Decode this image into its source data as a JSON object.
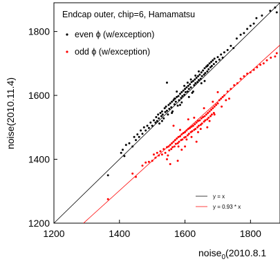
{
  "chart_data": {
    "type": "scatter",
    "title": "Endcap outer, chip=6, Hamamatsu",
    "xlabel": {
      "base": "noise",
      "subscript": "0",
      "rest": "(2010.8.1"
    },
    "ylabel": "noise(2010.11.4)",
    "xlim": [
      1200,
      1890
    ],
    "ylim": [
      1200,
      1890
    ],
    "xticks": [
      1200,
      1400,
      1600,
      1800
    ],
    "yticks": [
      1200,
      1400,
      1600,
      1800
    ],
    "grid": false,
    "legend_top": {
      "placement": "top-left",
      "entries": [
        {
          "label": "even ϕ (w/exception)",
          "color": "#000000"
        },
        {
          "label": "odd ϕ (w/exception)",
          "color": "#ff0000"
        }
      ]
    },
    "legend_bottom": {
      "placement": "bottom-right",
      "entries": [
        {
          "label": "y = x",
          "color": "#000000"
        },
        {
          "label": "y = 0.93 * x",
          "color": "#ff0000"
        }
      ]
    },
    "reference_lines": [
      {
        "label": "y = x",
        "slope": 1.0,
        "color": "#000000"
      },
      {
        "label": "y = 0.93 * x",
        "slope": 0.93,
        "color": "#ff0000"
      }
    ],
    "series": [
      {
        "name": "even ϕ (w/exception)",
        "color": "#000000",
        "points": [
          [
            1365,
            1350
          ],
          [
            1405,
            1420
          ],
          [
            1410,
            1430
          ],
          [
            1415,
            1410
          ],
          [
            1420,
            1445
          ],
          [
            1430,
            1450
          ],
          [
            1440,
            1440
          ],
          [
            1445,
            1470
          ],
          [
            1450,
            1460
          ],
          [
            1455,
            1478
          ],
          [
            1460,
            1470
          ],
          [
            1465,
            1490
          ],
          [
            1470,
            1480
          ],
          [
            1475,
            1500
          ],
          [
            1480,
            1490
          ],
          [
            1485,
            1505
          ],
          [
            1490,
            1498
          ],
          [
            1495,
            1515
          ],
          [
            1500,
            1505
          ],
          [
            1505,
            1522
          ],
          [
            1510,
            1515
          ],
          [
            1512,
            1532
          ],
          [
            1515,
            1520
          ],
          [
            1518,
            1540
          ],
          [
            1520,
            1528
          ],
          [
            1522,
            1512
          ],
          [
            1525,
            1545
          ],
          [
            1528,
            1535
          ],
          [
            1530,
            1550
          ],
          [
            1532,
            1540
          ],
          [
            1535,
            1528
          ],
          [
            1538,
            1560
          ],
          [
            1540,
            1548
          ],
          [
            1542,
            1565
          ],
          [
            1545,
            1552
          ],
          [
            1548,
            1540
          ],
          [
            1550,
            1570
          ],
          [
            1552,
            1558
          ],
          [
            1555,
            1575
          ],
          [
            1558,
            1563
          ],
          [
            1560,
            1580
          ],
          [
            1562,
            1550
          ],
          [
            1565,
            1585
          ],
          [
            1568,
            1572
          ],
          [
            1570,
            1590
          ],
          [
            1572,
            1580
          ],
          [
            1575,
            1595
          ],
          [
            1578,
            1568
          ],
          [
            1580,
            1598
          ],
          [
            1582,
            1585
          ],
          [
            1585,
            1605
          ],
          [
            1588,
            1592
          ],
          [
            1590,
            1610
          ],
          [
            1592,
            1598
          ],
          [
            1595,
            1615
          ],
          [
            1598,
            1602
          ],
          [
            1600,
            1620
          ],
          [
            1602,
            1610
          ],
          [
            1605,
            1625
          ],
          [
            1608,
            1612
          ],
          [
            1610,
            1630
          ],
          [
            1612,
            1620
          ],
          [
            1615,
            1635
          ],
          [
            1618,
            1625
          ],
          [
            1620,
            1642
          ],
          [
            1622,
            1608
          ],
          [
            1625,
            1645
          ],
          [
            1628,
            1632
          ],
          [
            1630,
            1650
          ],
          [
            1632,
            1638
          ],
          [
            1635,
            1655
          ],
          [
            1638,
            1642
          ],
          [
            1640,
            1660
          ],
          [
            1642,
            1648
          ],
          [
            1645,
            1665
          ],
          [
            1648,
            1652
          ],
          [
            1650,
            1672
          ],
          [
            1652,
            1660
          ],
          [
            1655,
            1678
          ],
          [
            1658,
            1665
          ],
          [
            1660,
            1685
          ],
          [
            1662,
            1670
          ],
          [
            1665,
            1690
          ],
          [
            1668,
            1675
          ],
          [
            1670,
            1695
          ],
          [
            1672,
            1682
          ],
          [
            1675,
            1700
          ],
          [
            1678,
            1688
          ],
          [
            1680,
            1705
          ],
          [
            1682,
            1692
          ],
          [
            1685,
            1710
          ],
          [
            1688,
            1698
          ],
          [
            1690,
            1715
          ],
          [
            1695,
            1705
          ],
          [
            1700,
            1720
          ],
          [
            1705,
            1712
          ],
          [
            1710,
            1728
          ],
          [
            1715,
            1718
          ],
          [
            1720,
            1735
          ],
          [
            1730,
            1742
          ],
          [
            1740,
            1755
          ],
          [
            1748,
            1748
          ],
          [
            1758,
            1778
          ],
          [
            1770,
            1790
          ],
          [
            1780,
            1795
          ],
          [
            1790,
            1808
          ],
          [
            1800,
            1818
          ],
          [
            1810,
            1825
          ],
          [
            1818,
            1842
          ],
          [
            1835,
            1850
          ],
          [
            1860,
            1865
          ],
          [
            1875,
            1875
          ],
          [
            1880,
            1860
          ],
          [
            1545,
            1640
          ],
          [
            1560,
            1545
          ],
          [
            1612,
            1595
          ],
          [
            1598,
            1630
          ],
          [
            1575,
            1612
          ],
          [
            1625,
            1612
          ],
          [
            1660,
            1645
          ],
          [
            1642,
            1675
          ],
          [
            1585,
            1570
          ],
          [
            1530,
            1520
          ],
          [
            1568,
            1590
          ],
          [
            1632,
            1662
          ],
          [
            1650,
            1638
          ],
          [
            1668,
            1692
          ],
          [
            1608,
            1640
          ],
          [
            1590,
            1578
          ],
          [
            1618,
            1650
          ]
        ]
      },
      {
        "name": "odd ϕ (w/exception)",
        "color": "#ff0000",
        "points": [
          [
            1365,
            1275
          ],
          [
            1440,
            1355
          ],
          [
            1450,
            1345
          ],
          [
            1470,
            1380
          ],
          [
            1480,
            1390
          ],
          [
            1490,
            1392
          ],
          [
            1500,
            1395
          ],
          [
            1505,
            1415
          ],
          [
            1510,
            1405
          ],
          [
            1515,
            1420
          ],
          [
            1520,
            1412
          ],
          [
            1525,
            1425
          ],
          [
            1530,
            1415
          ],
          [
            1535,
            1432
          ],
          [
            1540,
            1420
          ],
          [
            1545,
            1438
          ],
          [
            1548,
            1412
          ],
          [
            1550,
            1440
          ],
          [
            1552,
            1428
          ],
          [
            1555,
            1445
          ],
          [
            1558,
            1432
          ],
          [
            1560,
            1450
          ],
          [
            1562,
            1438
          ],
          [
            1565,
            1455
          ],
          [
            1568,
            1440
          ],
          [
            1570,
            1460
          ],
          [
            1572,
            1448
          ],
          [
            1575,
            1465
          ],
          [
            1578,
            1450
          ],
          [
            1580,
            1470
          ],
          [
            1582,
            1455
          ],
          [
            1585,
            1472
          ],
          [
            1588,
            1460
          ],
          [
            1590,
            1478
          ],
          [
            1592,
            1462
          ],
          [
            1595,
            1482
          ],
          [
            1598,
            1468
          ],
          [
            1600,
            1485
          ],
          [
            1602,
            1470
          ],
          [
            1605,
            1490
          ],
          [
            1608,
            1475
          ],
          [
            1610,
            1495
          ],
          [
            1612,
            1480
          ],
          [
            1615,
            1498
          ],
          [
            1618,
            1485
          ],
          [
            1620,
            1502
          ],
          [
            1622,
            1488
          ],
          [
            1625,
            1505
          ],
          [
            1628,
            1492
          ],
          [
            1630,
            1510
          ],
          [
            1632,
            1495
          ],
          [
            1635,
            1515
          ],
          [
            1638,
            1500
          ],
          [
            1640,
            1520
          ],
          [
            1642,
            1505
          ],
          [
            1645,
            1522
          ],
          [
            1648,
            1508
          ],
          [
            1650,
            1528
          ],
          [
            1652,
            1512
          ],
          [
            1655,
            1532
          ],
          [
            1658,
            1518
          ],
          [
            1660,
            1535
          ],
          [
            1662,
            1522
          ],
          [
            1665,
            1540
          ],
          [
            1668,
            1525
          ],
          [
            1670,
            1545
          ],
          [
            1672,
            1530
          ],
          [
            1675,
            1550
          ],
          [
            1678,
            1535
          ],
          [
            1680,
            1555
          ],
          [
            1682,
            1540
          ],
          [
            1685,
            1560
          ],
          [
            1688,
            1545
          ],
          [
            1690,
            1565
          ],
          [
            1695,
            1570
          ],
          [
            1700,
            1575
          ],
          [
            1705,
            1585
          ],
          [
            1710,
            1590
          ],
          [
            1715,
            1595
          ],
          [
            1720,
            1600
          ],
          [
            1725,
            1585
          ],
          [
            1730,
            1612
          ],
          [
            1740,
            1620
          ],
          [
            1750,
            1632
          ],
          [
            1760,
            1638
          ],
          [
            1770,
            1652
          ],
          [
            1780,
            1660
          ],
          [
            1790,
            1668
          ],
          [
            1800,
            1672
          ],
          [
            1810,
            1680
          ],
          [
            1820,
            1688
          ],
          [
            1830,
            1696
          ],
          [
            1840,
            1700
          ],
          [
            1850,
            1710
          ],
          [
            1862,
            1718
          ],
          [
            1875,
            1722
          ],
          [
            1880,
            1732
          ],
          [
            1545,
            1400
          ],
          [
            1578,
            1395
          ],
          [
            1600,
            1440
          ],
          [
            1565,
            1505
          ],
          [
            1620,
            1470
          ],
          [
            1640,
            1485
          ],
          [
            1658,
            1560
          ],
          [
            1675,
            1520
          ],
          [
            1690,
            1540
          ],
          [
            1700,
            1610
          ],
          [
            1610,
            1525
          ],
          [
            1590,
            1430
          ],
          [
            1635,
            1455
          ],
          [
            1555,
            1385
          ],
          [
            1585,
            1492
          ],
          [
            1605,
            1462
          ],
          [
            1628,
            1530
          ],
          [
            1648,
            1495
          ],
          [
            1668,
            1500
          ],
          [
            1685,
            1580
          ],
          [
            1712,
            1565
          ],
          [
            1735,
            1590
          ],
          [
            1580,
            1440
          ]
        ]
      }
    ]
  }
}
